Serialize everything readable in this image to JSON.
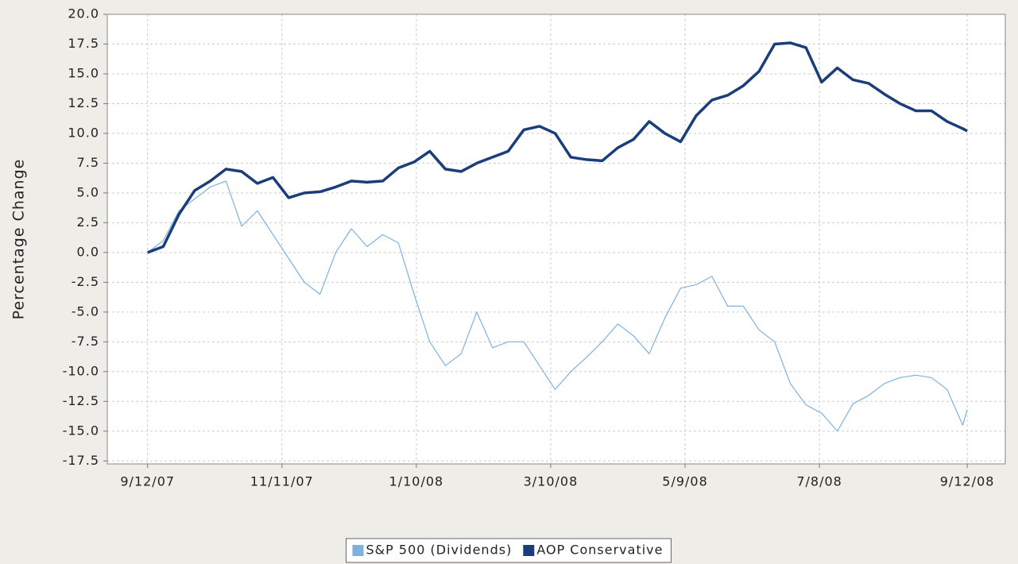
{
  "chart_data": {
    "type": "line",
    "y_label": "Percentage Change",
    "x": [
      "2007-09-12",
      "2007-09-19",
      "2007-09-26",
      "2007-10-03",
      "2007-10-10",
      "2007-10-17",
      "2007-10-24",
      "2007-10-31",
      "2007-11-07",
      "2007-11-14",
      "2007-11-21",
      "2007-11-28",
      "2007-12-05",
      "2007-12-12",
      "2007-12-19",
      "2007-12-26",
      "2008-01-02",
      "2008-01-09",
      "2008-01-16",
      "2008-01-23",
      "2008-01-30",
      "2008-02-06",
      "2008-02-13",
      "2008-02-20",
      "2008-02-27",
      "2008-03-05",
      "2008-03-12",
      "2008-03-19",
      "2008-03-26",
      "2008-04-02",
      "2008-04-09",
      "2008-04-16",
      "2008-04-23",
      "2008-04-30",
      "2008-05-07",
      "2008-05-14",
      "2008-05-21",
      "2008-05-28",
      "2008-06-04",
      "2008-06-11",
      "2008-06-18",
      "2008-06-25",
      "2008-07-02",
      "2008-07-09",
      "2008-07-16",
      "2008-07-23",
      "2008-07-30",
      "2008-08-06",
      "2008-08-13",
      "2008-08-20",
      "2008-08-27",
      "2008-09-03",
      "2008-09-10",
      "2008-09-12"
    ],
    "series": [
      {
        "name": "S&P 500 (Dividends)",
        "color": "#7fb1dd",
        "width": 1.2,
        "values": [
          0,
          1,
          3.5,
          4.5,
          5.5,
          6,
          2.2,
          3.5,
          1.5,
          -0.5,
          -2.5,
          -3.5,
          0,
          2,
          0.5,
          1.5,
          0.8,
          -3.5,
          -7.5,
          -9.5,
          -8.5,
          -5,
          -8,
          -7.5,
          -7.5,
          -9.5,
          -11.5,
          -10,
          -8.8,
          -7.5,
          -6,
          -7,
          -8.5,
          -5.5,
          -3,
          -2.7,
          -2,
          -4.5,
          -4.5,
          -6.5,
          -7.5,
          -11,
          -12.8,
          -13.5,
          -15,
          -12.7,
          -12,
          -11,
          -10.5,
          -10.3,
          -10.5,
          -11.5,
          -14.5,
          -13.2
        ]
      },
      {
        "name": "AOP Conservative",
        "color": "#1a3e7a",
        "width": 3.5,
        "values": [
          0,
          0.5,
          3.2,
          5.2,
          6,
          7,
          6.8,
          5.8,
          6.3,
          4.6,
          5,
          5.1,
          5.5,
          6,
          5.9,
          6,
          7.1,
          7.6,
          8.5,
          7,
          6.8,
          7.5,
          8,
          8.5,
          10.3,
          10.6,
          10,
          8,
          7.8,
          7.7,
          8.8,
          9.5,
          11,
          10,
          9.3,
          11.5,
          12.8,
          13.2,
          14,
          15.2,
          17.5,
          17.6,
          17.2,
          14.3,
          15.5,
          14.5,
          14.2,
          13.3,
          12.5,
          11.9,
          11.9,
          11,
          10.4,
          10.2
        ]
      }
    ],
    "xlim": [
      "2007-08-25",
      "2008-09-29"
    ],
    "xticks": [
      {
        "value": "2007-09-12",
        "label": "9/12/07"
      },
      {
        "value": "2007-11-11",
        "label": "11/11/07"
      },
      {
        "value": "2008-01-10",
        "label": "1/10/08"
      },
      {
        "value": "2008-03-10",
        "label": "3/10/08"
      },
      {
        "value": "2008-05-09",
        "label": "5/9/08"
      },
      {
        "value": "2008-07-08",
        "label": "7/8/08"
      },
      {
        "value": "2008-09-12",
        "label": "9/12/08"
      }
    ],
    "ylim": [
      -17.75,
      20
    ],
    "yticks": [
      {
        "value": 20,
        "label": "20.0"
      },
      17.5,
      {
        "value": 15,
        "label": "15.0"
      },
      12.5,
      {
        "value": 10,
        "label": "10.0"
      },
      7.5,
      {
        "value": 5,
        "label": "5.0"
      },
      2.5,
      {
        "value": 0,
        "label": "0.0"
      },
      -2.5,
      {
        "value": -5,
        "label": "-5.0"
      },
      -7.5,
      {
        "value": -10,
        "label": "-10.0"
      },
      -12.5,
      {
        "value": -15,
        "label": "-15.0"
      },
      -17.5
    ],
    "grid": true
  }
}
